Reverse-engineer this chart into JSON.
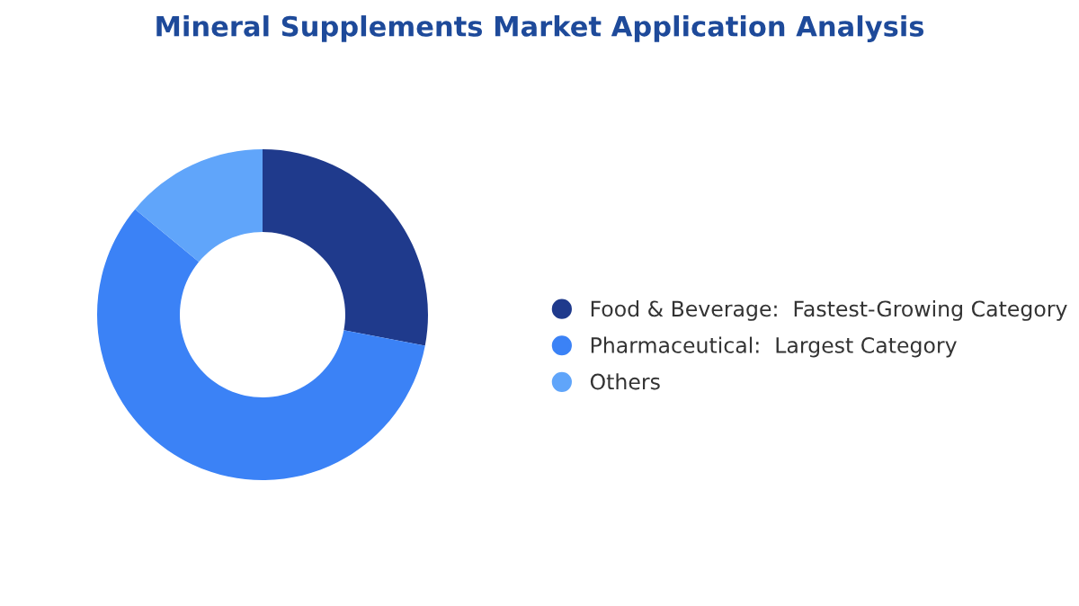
{
  "chart_data": {
    "type": "donut",
    "title": "Mineral Supplements Market Application Analysis",
    "categories": [
      "Food & Beverage:  Fastest-Growing Category",
      "Pharmaceutical:  Largest Category",
      "Others"
    ],
    "values": [
      28,
      58,
      14
    ],
    "colors": [
      "#1f3a8c",
      "#3b82f6",
      "#60a5fa"
    ],
    "legend": "right"
  }
}
